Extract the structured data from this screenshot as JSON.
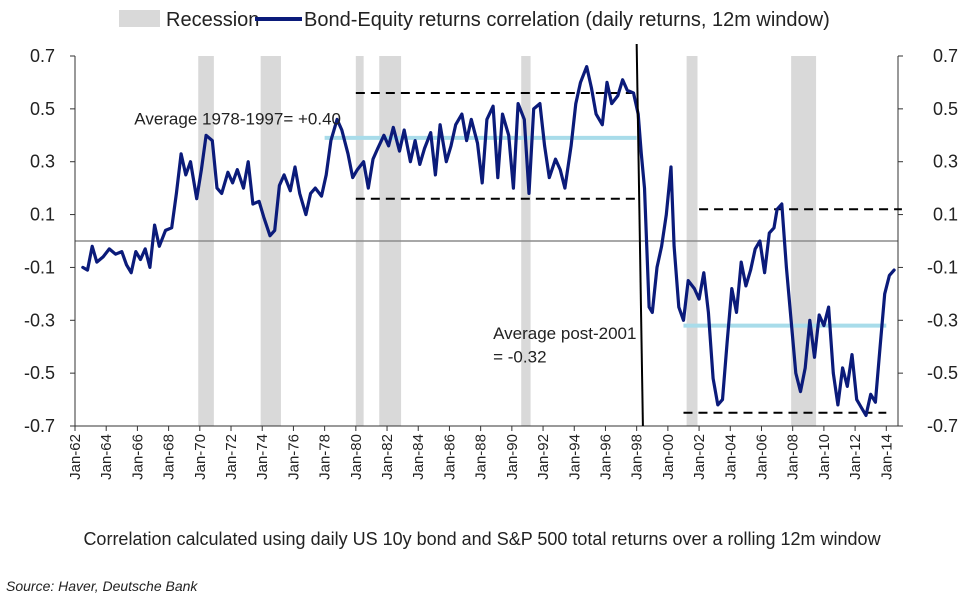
{
  "chart_data": {
    "type": "line",
    "legend": {
      "placement": "top",
      "entries": [
        "Recession",
        "Bond-Equity returns correlation (daily returns, 12m window)"
      ]
    },
    "ylim": [
      -0.7,
      0.7
    ],
    "yticks": [
      -0.7,
      -0.5,
      -0.3,
      -0.1,
      0.1,
      0.3,
      0.5,
      0.7
    ],
    "ytick_labels": [
      "-0.7",
      "-0.5",
      "-0.3",
      "-0.1",
      "0.1",
      "0.3",
      "0.5",
      "0.7"
    ],
    "xlim": [
      1962.0,
      2014.75
    ],
    "xtick_labels": [
      "Jan-62",
      "Jan-64",
      "Jan-66",
      "Jan-68",
      "Jan-70",
      "Jan-72",
      "Jan-74",
      "Jan-76",
      "Jan-78",
      "Jan-80",
      "Jan-82",
      "Jan-84",
      "Jan-86",
      "Jan-88",
      "Jan-90",
      "Jan-92",
      "Jan-94",
      "Jan-96",
      "Jan-98",
      "Jan-00",
      "Jan-02",
      "Jan-04",
      "Jan-06",
      "Jan-08",
      "Jan-10",
      "Jan-12",
      "Jan-14"
    ],
    "recessions": [
      [
        1969.9,
        1970.9
      ],
      [
        1973.9,
        1975.2
      ],
      [
        1980.0,
        1980.5
      ],
      [
        1981.5,
        1982.9
      ],
      [
        1990.6,
        1991.2
      ],
      [
        2001.2,
        2001.9
      ],
      [
        2007.9,
        2009.5
      ]
    ],
    "series": [
      {
        "name": "Bond-Equity returns correlation (daily returns, 12m window)",
        "color": "#0b1b7a",
        "x": [
          1962.5,
          1962.8,
          1963.1,
          1963.4,
          1963.8,
          1964.2,
          1964.6,
          1965.0,
          1965.3,
          1965.6,
          1965.9,
          1966.2,
          1966.5,
          1966.8,
          1967.1,
          1967.4,
          1967.8,
          1968.2,
          1968.5,
          1968.8,
          1969.1,
          1969.4,
          1969.8,
          1970.1,
          1970.4,
          1970.8,
          1971.1,
          1971.4,
          1971.8,
          1972.1,
          1972.4,
          1972.8,
          1973.1,
          1973.4,
          1973.8,
          1974.1,
          1974.5,
          1974.8,
          1975.1,
          1975.4,
          1975.8,
          1976.1,
          1976.4,
          1976.8,
          1977.1,
          1977.4,
          1977.8,
          1978.1,
          1978.4,
          1978.8,
          1979.1,
          1979.5,
          1979.8,
          1980.1,
          1980.5,
          1980.8,
          1981.1,
          1981.4,
          1981.8,
          1982.1,
          1982.4,
          1982.8,
          1983.1,
          1983.5,
          1983.8,
          1984.1,
          1984.4,
          1984.8,
          1985.1,
          1985.4,
          1985.8,
          1986.1,
          1986.4,
          1986.8,
          1987.1,
          1987.4,
          1987.8,
          1988.1,
          1988.4,
          1988.8,
          1989.1,
          1989.4,
          1989.8,
          1990.1,
          1990.4,
          1990.8,
          1991.1,
          1991.4,
          1991.8,
          1992.1,
          1992.4,
          1992.8,
          1993.1,
          1993.4,
          1993.8,
          1994.1,
          1994.4,
          1994.8,
          1995.1,
          1995.4,
          1995.8,
          1996.1,
          1996.4,
          1996.8,
          1997.1,
          1997.4,
          1997.8,
          1998.1,
          1998.3,
          1998.5,
          1998.8,
          1999.0,
          1999.3,
          1999.6,
          1999.9,
          2000.2,
          2000.4,
          2000.7,
          2001.0,
          2001.3,
          2001.7,
          2002.0,
          2002.3,
          2002.6,
          2002.9,
          2003.2,
          2003.5,
          2003.8,
          2004.1,
          2004.4,
          2004.7,
          2005.0,
          2005.3,
          2005.6,
          2005.9,
          2006.2,
          2006.5,
          2006.8,
          2007.0,
          2007.3,
          2007.6,
          2007.9,
          2008.2,
          2008.5,
          2008.8,
          2009.1,
          2009.4,
          2009.7,
          2010.0,
          2010.3,
          2010.6,
          2010.9,
          2011.2,
          2011.5,
          2011.8,
          2012.1,
          2012.4,
          2012.7,
          2013.0,
          2013.3,
          2013.6,
          2013.9,
          2014.2,
          2014.5
        ],
        "values": [
          -0.1,
          -0.11,
          -0.02,
          -0.08,
          -0.06,
          -0.03,
          -0.05,
          -0.04,
          -0.09,
          -0.12,
          -0.04,
          -0.07,
          -0.03,
          -0.1,
          0.06,
          -0.02,
          0.04,
          0.05,
          0.18,
          0.33,
          0.25,
          0.3,
          0.16,
          0.27,
          0.4,
          0.38,
          0.2,
          0.18,
          0.26,
          0.22,
          0.27,
          0.2,
          0.3,
          0.14,
          0.15,
          0.09,
          0.02,
          0.04,
          0.21,
          0.25,
          0.19,
          0.28,
          0.18,
          0.1,
          0.18,
          0.2,
          0.17,
          0.25,
          0.38,
          0.46,
          0.42,
          0.33,
          0.24,
          0.27,
          0.3,
          0.2,
          0.31,
          0.35,
          0.4,
          0.36,
          0.43,
          0.34,
          0.42,
          0.3,
          0.38,
          0.29,
          0.35,
          0.41,
          0.25,
          0.44,
          0.3,
          0.36,
          0.44,
          0.48,
          0.38,
          0.46,
          0.37,
          0.22,
          0.46,
          0.51,
          0.24,
          0.48,
          0.4,
          0.2,
          0.52,
          0.46,
          0.18,
          0.5,
          0.52,
          0.36,
          0.24,
          0.31,
          0.27,
          0.2,
          0.36,
          0.52,
          0.6,
          0.66,
          0.58,
          0.48,
          0.44,
          0.6,
          0.52,
          0.55,
          0.61,
          0.57,
          0.56,
          0.48,
          0.33,
          0.2,
          -0.25,
          -0.27,
          -0.1,
          -0.02,
          0.1,
          0.28,
          -0.02,
          -0.25,
          -0.3,
          -0.15,
          -0.18,
          -0.22,
          -0.12,
          -0.27,
          -0.52,
          -0.62,
          -0.6,
          -0.38,
          -0.18,
          -0.27,
          -0.08,
          -0.17,
          -0.11,
          -0.03,
          0.0,
          -0.12,
          0.03,
          0.05,
          0.12,
          0.14,
          -0.1,
          -0.3,
          -0.5,
          -0.57,
          -0.48,
          -0.3,
          -0.44,
          -0.28,
          -0.32,
          -0.25,
          -0.5,
          -0.62,
          -0.48,
          -0.55,
          -0.43,
          -0.6,
          -0.63,
          -0.66,
          -0.58,
          -0.61,
          -0.4,
          -0.2,
          -0.13,
          -0.11
        ]
      }
    ],
    "reference_lines": [
      {
        "style": "light-blue",
        "y": 0.39,
        "x": [
          1978.0,
          1998.0
        ]
      },
      {
        "style": "light-blue",
        "y": -0.32,
        "x": [
          2001.0,
          2014.0
        ]
      },
      {
        "style": "dashed",
        "y": 0.56,
        "x": [
          1980.0,
          1998.0
        ]
      },
      {
        "style": "dashed",
        "y": 0.16,
        "x": [
          1980.0,
          1998.0
        ]
      },
      {
        "style": "dashed",
        "y": 0.12,
        "x": [
          2002.0,
          2015.0
        ]
      },
      {
        "style": "dashed",
        "y": -0.65,
        "x": [
          2001.0,
          2014.0
        ]
      }
    ],
    "break_line": {
      "x_top": 1998.0,
      "x_bottom": 1998.4
    },
    "annotations": [
      {
        "id": "avg1",
        "text": "Average 1978-1997=  +0.40",
        "x": 1965.8,
        "y": 0.44
      },
      {
        "id": "avg2a",
        "text": "Average post-2001",
        "x": 1988.8,
        "y": -0.37
      },
      {
        "id": "avg2b",
        "text": "= -0.32",
        "x": 1988.8,
        "y": -0.46
      }
    ]
  },
  "caption": "Correlation calculated using daily US 10y bond and S&P 500 total returns  over a rolling 12m window",
  "source": "Source: Haver, Deutsche Bank",
  "colors": {
    "series": "#0b1b7a",
    "recession": "#d9d9d9",
    "average_line": "#a8dcea",
    "dashed": "#000000",
    "zero_line": "#8c8c8c"
  }
}
